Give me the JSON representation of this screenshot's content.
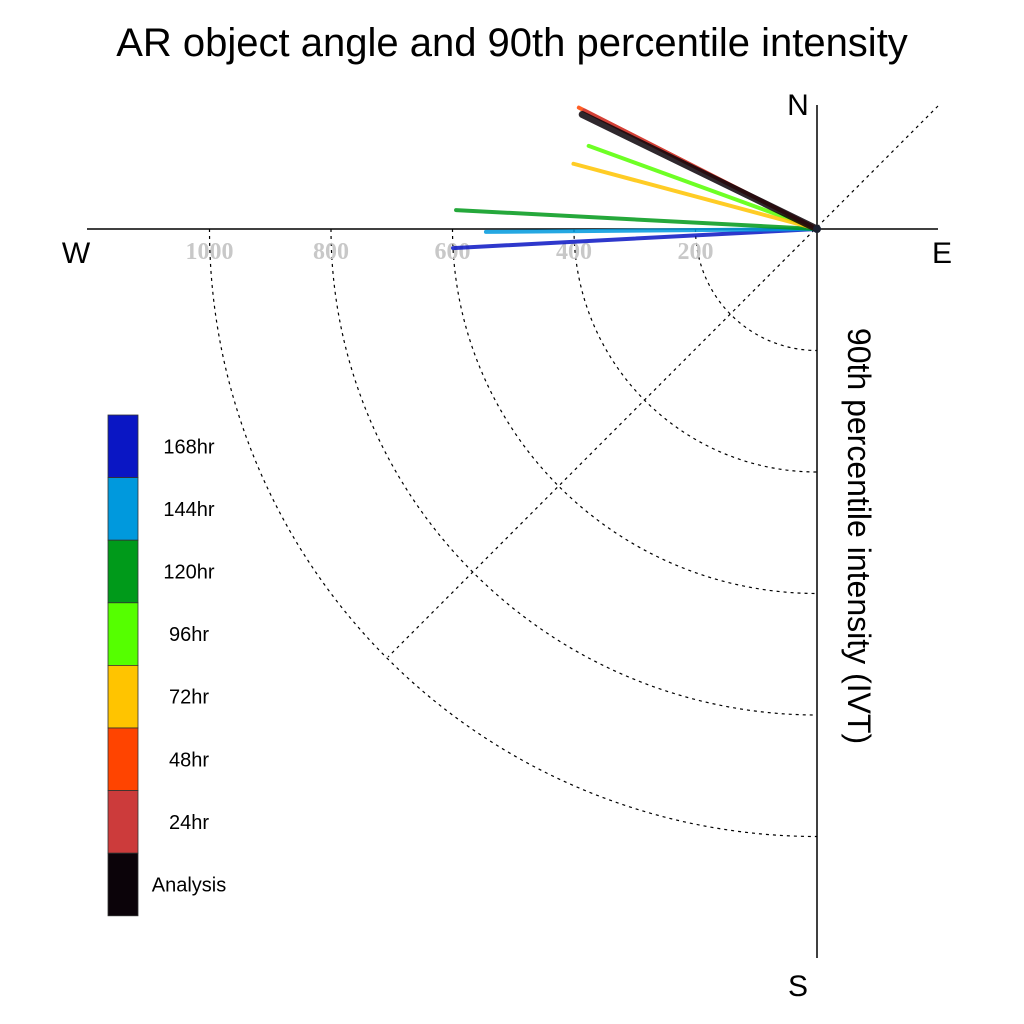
{
  "chart_data": {
    "type": "polar-line",
    "title": "AR object angle and 90th percentile intensity",
    "radial_label": "90th percentile intensity (IVT)",
    "directions": {
      "north": "N",
      "south": "S",
      "east": "E",
      "west": "W"
    },
    "radial_ticks": [
      {
        "value": 200,
        "label": "200"
      },
      {
        "value": 400,
        "label": "400"
      },
      {
        "value": 600,
        "label": "600"
      },
      {
        "value": 800,
        "label": "800"
      },
      {
        "value": 1000,
        "label": "1000"
      }
    ],
    "radial_max": 1000,
    "series": [
      {
        "name": "168hr",
        "color": "#0a16c4",
        "angle_deg": 183,
        "intensity": 600
      },
      {
        "name": "144hr",
        "color": "#0099dd",
        "angle_deg": 180.5,
        "intensity": 545
      },
      {
        "name": "120hr",
        "color": "#009a1a",
        "angle_deg": 177,
        "intensity": 595
      },
      {
        "name": "96hr",
        "color": "#55ff00",
        "angle_deg": 160,
        "intensity": 400
      },
      {
        "name": "72hr",
        "color": "#ffc400",
        "angle_deg": 165,
        "intensity": 415
      },
      {
        "name": "48hr",
        "color": "#ff4400",
        "angle_deg": 153,
        "intensity": 440
      },
      {
        "name": "24hr",
        "color": "#cc3b3b",
        "angle_deg": 153,
        "intensity": 430
      },
      {
        "name": "Analysis",
        "color": "#0b0309",
        "angle_deg": 154,
        "intensity": 430
      }
    ],
    "legend": [
      {
        "label": "168hr",
        "color": "#0a16c4"
      },
      {
        "label": "144hr",
        "color": "#0099dd"
      },
      {
        "label": "120hr",
        "color": "#009a1a"
      },
      {
        "label": "96hr",
        "color": "#55ff00"
      },
      {
        "label": "72hr",
        "color": "#ffc400"
      },
      {
        "label": "48hr",
        "color": "#ff4400"
      },
      {
        "label": "24hr",
        "color": "#cc3b3b"
      },
      {
        "label": "Analysis",
        "color": "#0b0309"
      }
    ],
    "legend_placement": "bottom-left"
  }
}
